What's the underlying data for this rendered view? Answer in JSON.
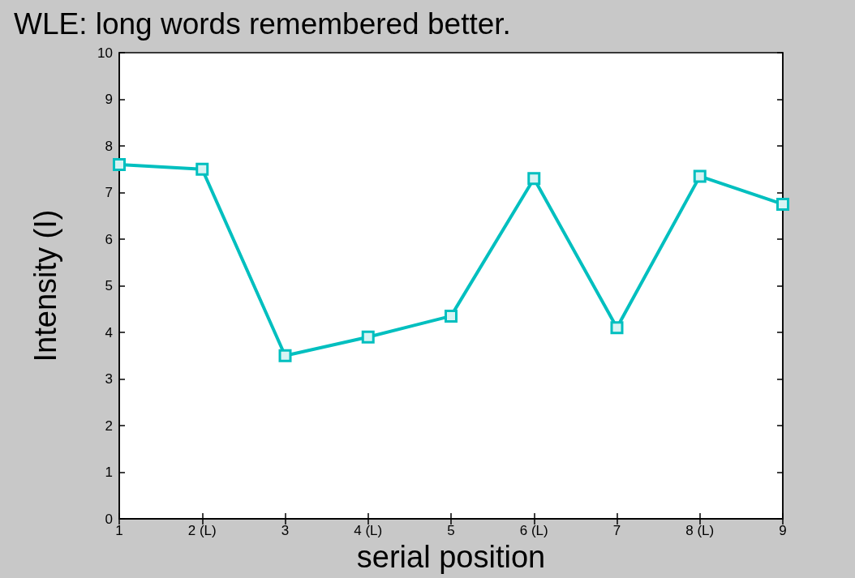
{
  "chart_data": {
    "type": "line",
    "title": "WLE: long words remembered better.",
    "xlabel": "serial position",
    "ylabel": "Intensity (I)",
    "categories": [
      "1",
      "2 (L)",
      "3",
      "4 (L)",
      "5",
      "6 (L)",
      "7",
      "8 (L)",
      "9"
    ],
    "series": [
      {
        "color": "#00bfbf",
        "values": [
          7.6,
          7.5,
          3.5,
          3.9,
          4.35,
          7.3,
          4.1,
          7.35,
          6.75
        ]
      }
    ],
    "ylim": [
      0,
      10
    ],
    "yticks": [
      0,
      1,
      2,
      3,
      4,
      5,
      6,
      7,
      8,
      9,
      10
    ],
    "grid": false,
    "marker": "square",
    "line_style": "solid"
  }
}
